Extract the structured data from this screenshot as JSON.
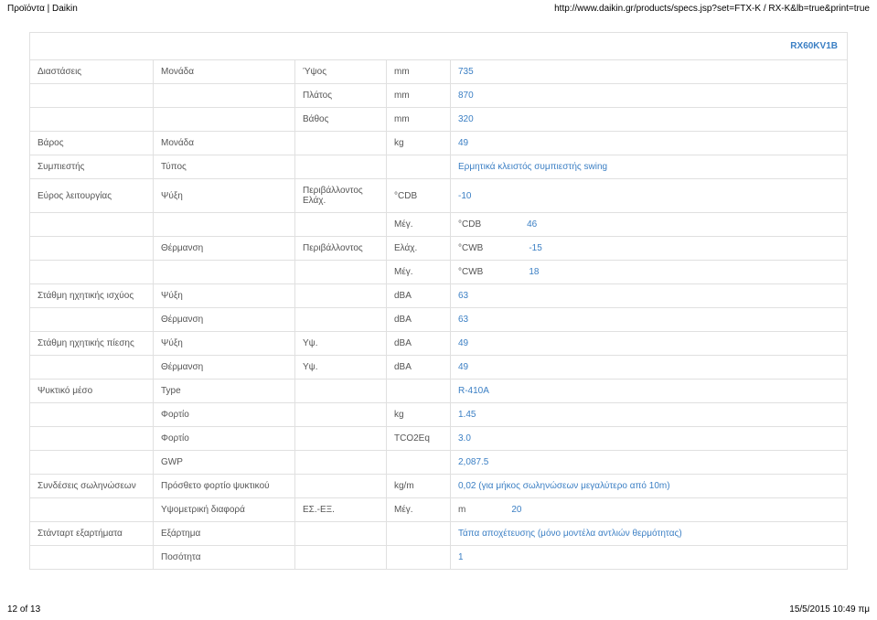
{
  "header": {
    "left": "Προϊόντα | Daikin",
    "right": "http://www.daikin.gr/products/specs.jsp?set=FTX-K / RX-K&lb=true&print=true"
  },
  "table": {
    "model": "RX60KV1B",
    "rows": [
      {
        "c1": "Διαστάσεις",
        "c2": "Μονάδα",
        "c3": "Ύψος",
        "c4": "mm",
        "c5": "735",
        "blue": true
      },
      {
        "c1": "",
        "c2": "",
        "c3": "Πλάτος",
        "c4": "mm",
        "c5": "870",
        "blue": true
      },
      {
        "c1": "",
        "c2": "",
        "c3": "Βάθος",
        "c4": "mm",
        "c5": "320",
        "blue": true
      },
      {
        "c1": "Βάρος",
        "c2": "Μονάδα",
        "c3": "",
        "c4": "kg",
        "c5": "49",
        "blue": true
      },
      {
        "c1": "Συμπιεστής",
        "c2": "Τύπος",
        "c3": "",
        "c4": "",
        "c5": "Ερμητικά κλειστός συμπιεστής swing",
        "blue": true
      },
      {
        "c1": "Εύρος λειτουργίας",
        "c2": "Ψύξη",
        "c3": "Περιβάλλοντος",
        "c4": "Ελάχ.",
        "c5": "-10",
        "blue": true,
        "unit": "°CDB"
      },
      {
        "c1": "",
        "c2": "",
        "c3": "",
        "c4": "Μέγ.",
        "c5": "46",
        "blue": true,
        "unit": "°CDB"
      },
      {
        "c1": "",
        "c2": "Θέρμανση",
        "c3": "Περιβάλλοντος",
        "c4": "Ελάχ.",
        "c5": "-15",
        "blue": true,
        "unit": "°CWB"
      },
      {
        "c1": "",
        "c2": "",
        "c3": "",
        "c4": "Μέγ.",
        "c5": "18",
        "blue": true,
        "unit": "°CWB"
      },
      {
        "c1": "Στάθμη ηχητικής ισχύος",
        "c2": "Ψύξη",
        "c3": "",
        "c4": "dBA",
        "c5": "63",
        "blue": true
      },
      {
        "c1": "",
        "c2": "Θέρμανση",
        "c3": "",
        "c4": "dBA",
        "c5": "63",
        "blue": true
      },
      {
        "c1": "Στάθμη ηχητικής πίεσης",
        "c2": "Ψύξη",
        "c3": "Υψ.",
        "c4": "dBA",
        "c5": "49",
        "blue": true
      },
      {
        "c1": "",
        "c2": "Θέρμανση",
        "c3": "Υψ.",
        "c4": "dBA",
        "c5": "49",
        "blue": true
      },
      {
        "c1": "Ψυκτικό μέσο",
        "c2": "Type",
        "c3": "",
        "c4": "",
        "c5": "R-410A",
        "blue": true
      },
      {
        "c1": "",
        "c2": "Φορτίο",
        "c3": "",
        "c4": "kg",
        "c5": "1.45",
        "blue": true
      },
      {
        "c1": "",
        "c2": "Φορτίο",
        "c3": "",
        "c4": "TCO2Eq",
        "c5": "3.0",
        "blue": true
      },
      {
        "c1": "",
        "c2": "GWP",
        "c3": "",
        "c4": "",
        "c5": "2,087.5",
        "blue": true
      },
      {
        "c1": "Συνδέσεις σωληνώσεων",
        "c2": "Πρόσθετο φορτίο ψυκτικού",
        "c3": "",
        "c4": "kg/m",
        "c5": "0,02 (για μήκος σωληνώσεων μεγαλύτερο από 10m)",
        "blue": true
      },
      {
        "c1": "",
        "c2": "Υψομετρική διαφορά",
        "c3": "ΕΣ.-ΕΞ.",
        "c4": "Μέγ.",
        "c5": "20",
        "blue": true,
        "unit": "m"
      },
      {
        "c1": "Στάνταρτ εξαρτήματα",
        "c2": "Εξάρτημα",
        "c3": "",
        "c4": "",
        "c5": "Τάπα αποχέτευσης (μόνο μοντέλα αντλιών θερμότητας)",
        "blue": true
      },
      {
        "c1": "",
        "c2": "Ποσότητα",
        "c3": "",
        "c4": "",
        "c5": "1",
        "blue": true
      }
    ]
  },
  "footer": {
    "left": "12 of 13",
    "right": "15/5/2015 10:49 πμ"
  }
}
